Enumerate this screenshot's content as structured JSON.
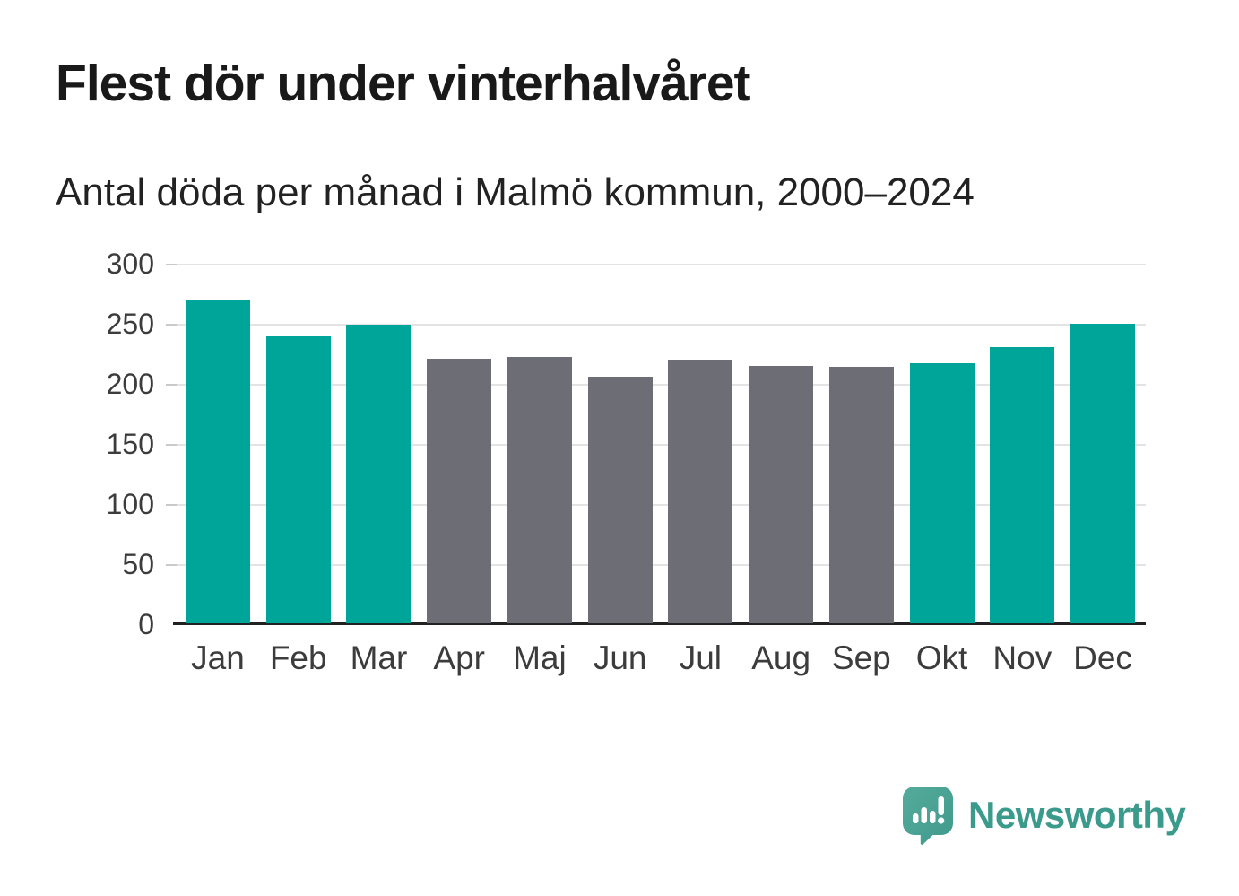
{
  "chart_data": {
    "type": "bar",
    "title": "Flest dör under vinterhalvåret",
    "subtitle": "Antal döda per månad i Malmö kommun, 2000–2024",
    "categories": [
      "Jan",
      "Feb",
      "Mar",
      "Apr",
      "Maj",
      "Jun",
      "Jul",
      "Aug",
      "Sep",
      "Okt",
      "Nov",
      "Dec"
    ],
    "values": [
      270,
      240,
      250,
      222,
      223,
      207,
      221,
      216,
      215,
      218,
      231,
      251
    ],
    "bar_color_keys": [
      "teal",
      "teal",
      "teal",
      "gray",
      "gray",
      "gray",
      "gray",
      "gray",
      "gray",
      "teal",
      "teal",
      "teal"
    ],
    "colors": {
      "teal": "#00a59a",
      "gray": "#6d6d75"
    },
    "xlabel": "",
    "ylabel": "",
    "ylim": [
      0,
      300
    ],
    "yticks": [
      0,
      50,
      100,
      150,
      200,
      250,
      300
    ],
    "grid": "horizontal",
    "legend": "none"
  },
  "branding": {
    "logo_text": "Newsworthy",
    "logo_text_color": "#3a9a8b",
    "logo_icon": "speech-bubble-bar-chart-exclamation",
    "logo_icon_color_top": "#55ab9b",
    "logo_icon_color_bottom": "#3f9a8c"
  }
}
